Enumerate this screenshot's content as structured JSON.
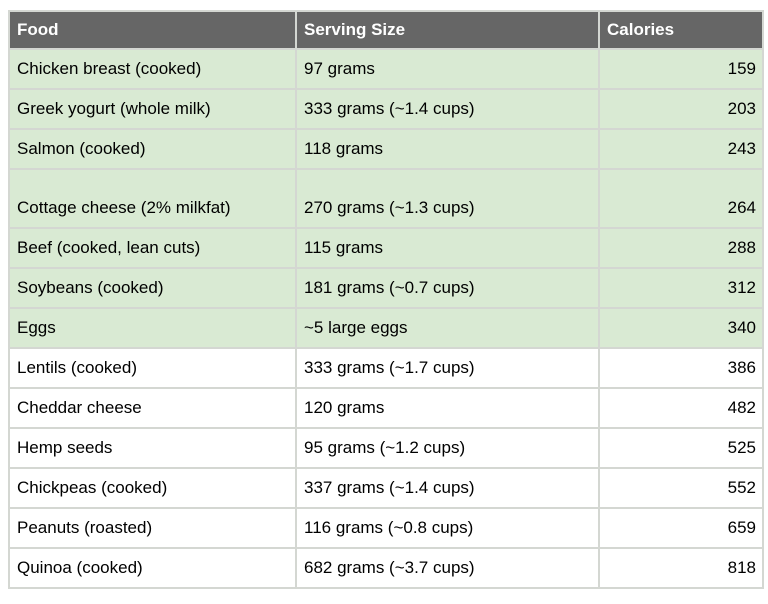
{
  "table": {
    "columns": [
      {
        "label": "Food"
      },
      {
        "label": "Serving Size"
      },
      {
        "label": "Calories"
      }
    ],
    "rows": [
      {
        "food": "Chicken breast (cooked)",
        "serving": "97 grams",
        "calories": "159",
        "highlighted": true,
        "tall": false
      },
      {
        "food": "Greek yogurt (whole milk)",
        "serving": "333 grams (~1.4 cups)",
        "calories": "203",
        "highlighted": true,
        "tall": false
      },
      {
        "food": "Salmon (cooked)",
        "serving": "118 grams",
        "calories": "243",
        "highlighted": true,
        "tall": false
      },
      {
        "food": "Cottage cheese (2% milkfat)",
        "serving": "270 grams (~1.3 cups)",
        "calories": "264",
        "highlighted": true,
        "tall": true
      },
      {
        "food": "Beef (cooked, lean cuts)",
        "serving": "115 grams",
        "calories": "288",
        "highlighted": true,
        "tall": false
      },
      {
        "food": "Soybeans (cooked)",
        "serving": "181 grams (~0.7 cups)",
        "calories": "312",
        "highlighted": true,
        "tall": false
      },
      {
        "food": "Eggs",
        "serving": "~5 large eggs",
        "calories": "340",
        "highlighted": true,
        "tall": false
      },
      {
        "food": "Lentils (cooked)",
        "serving": "333 grams (~1.7 cups)",
        "calories": "386",
        "highlighted": false,
        "tall": false
      },
      {
        "food": "Cheddar cheese",
        "serving": "120 grams",
        "calories": "482",
        "highlighted": false,
        "tall": false
      },
      {
        "food": "Hemp seeds",
        "serving": "95 grams (~1.2 cups)",
        "calories": "525",
        "highlighted": false,
        "tall": false
      },
      {
        "food": "Chickpeas (cooked)",
        "serving": "337 grams (~1.4 cups)",
        "calories": "552",
        "highlighted": false,
        "tall": false
      },
      {
        "food": "Peanuts (roasted)",
        "serving": "116 grams (~0.8 cups)",
        "calories": "659",
        "highlighted": false,
        "tall": false
      },
      {
        "food": "Quinoa (cooked)",
        "serving": "682 grams (~3.7 cups)",
        "calories": "818",
        "highlighted": false,
        "tall": false
      }
    ]
  },
  "colors": {
    "header_bg": "#666666",
    "header_text": "#ffffff",
    "highlight_row_bg": "#d9ead3",
    "plain_row_bg": "#ffffff",
    "gridline": "#d4d7d2",
    "body_text": "#000000"
  },
  "chart_data": {
    "type": "table",
    "title": "",
    "columns": [
      "Food",
      "Serving Size",
      "Calories"
    ],
    "rows": [
      [
        "Chicken breast (cooked)",
        "97 grams",
        159
      ],
      [
        "Greek yogurt (whole milk)",
        "333 grams (~1.4 cups)",
        203
      ],
      [
        "Salmon (cooked)",
        "118 grams",
        243
      ],
      [
        "Cottage cheese (2% milkfat)",
        "270 grams (~1.3 cups)",
        264
      ],
      [
        "Beef (cooked, lean cuts)",
        "115 grams",
        288
      ],
      [
        "Soybeans (cooked)",
        "181 grams (~0.7 cups)",
        312
      ],
      [
        "Eggs",
        "~5 large eggs",
        340
      ],
      [
        "Lentils (cooked)",
        "333 grams (~1.7 cups)",
        386
      ],
      [
        "Cheddar cheese",
        "120 grams",
        482
      ],
      [
        "Hemp seeds",
        "95 grams (~1.2 cups)",
        525
      ],
      [
        "Chickpeas (cooked)",
        "337 grams (~1.4 cups)",
        552
      ],
      [
        "Peanuts (roasted)",
        "116 grams (~0.8 cups)",
        659
      ],
      [
        "Quinoa (cooked)",
        "682 grams (~3.7 cups)",
        818
      ]
    ],
    "highlighted_row_indices": [
      0,
      1,
      2,
      3,
      4,
      5,
      6
    ],
    "column_alignments": [
      "left",
      "left",
      "right"
    ],
    "header_style": "dark-gray-bold-white"
  }
}
